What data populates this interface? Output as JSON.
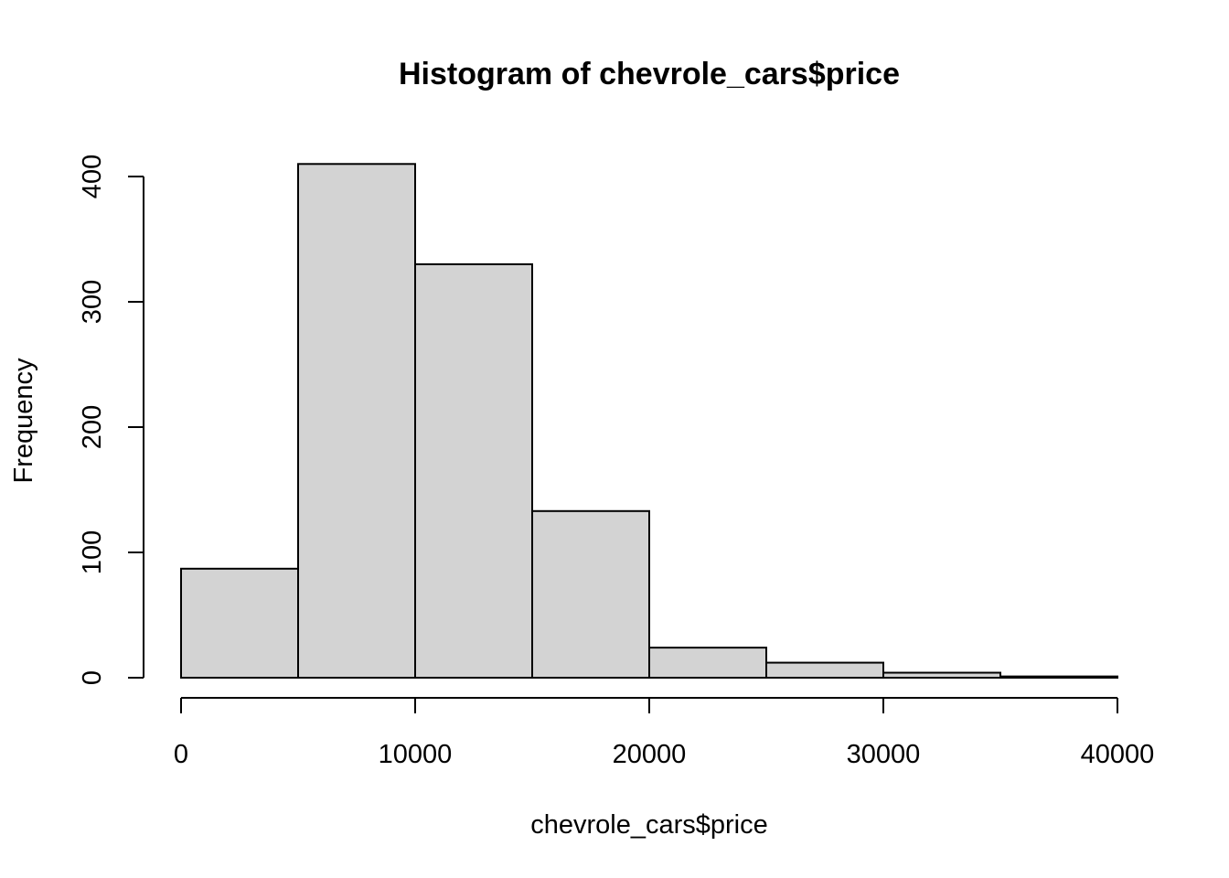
{
  "chart_data": {
    "type": "bar",
    "title": "Histogram of chevrole_cars$price",
    "xlabel": "chevrole_cars$price",
    "ylabel": "Frequency",
    "bin_edges": [
      0,
      5000,
      10000,
      15000,
      20000,
      25000,
      30000,
      35000,
      40000
    ],
    "values": [
      87,
      410,
      330,
      133,
      24,
      12,
      4,
      1
    ],
    "xlim": [
      0,
      40000
    ],
    "ylim": [
      0,
      410
    ],
    "x_ticks": [
      0,
      10000,
      20000,
      30000,
      40000
    ],
    "y_ticks": [
      0,
      100,
      200,
      300,
      400
    ],
    "bar_color": "#d3d3d3",
    "grid": false
  }
}
